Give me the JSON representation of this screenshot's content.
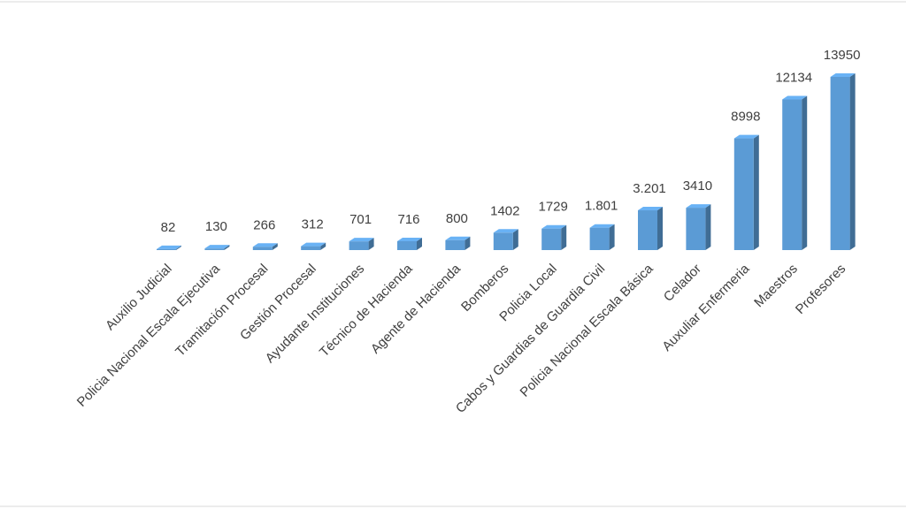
{
  "chart_data": {
    "type": "bar3d",
    "categories": [
      "Auxilio Judicial",
      "Policia Nacional Escala Ejecutiva",
      "Tramitación Procesal",
      "Gestión Procesal",
      "Ayudante Instituciones",
      "Técnico de Hacienda",
      "Agente de Hacienda",
      "Bomberos",
      "Policia Local",
      "Cabos y Guardias de Guardia Civil",
      "Policia Nacional Escala Básica",
      "Celador",
      "Auxuliar Enfermeria",
      "Maestros",
      "Profesores"
    ],
    "values": [
      82,
      130,
      266,
      312,
      701,
      716,
      800,
      1402,
      1729,
      1801,
      3201,
      3410,
      8998,
      12134,
      13950
    ],
    "value_labels": [
      "82",
      "130",
      "266",
      "312",
      "701",
      "716",
      "800",
      "1402",
      "1729",
      "1.801",
      "3.201",
      "3410",
      "8998",
      "12134",
      "13950"
    ],
    "color": "#5b9bd5"
  }
}
